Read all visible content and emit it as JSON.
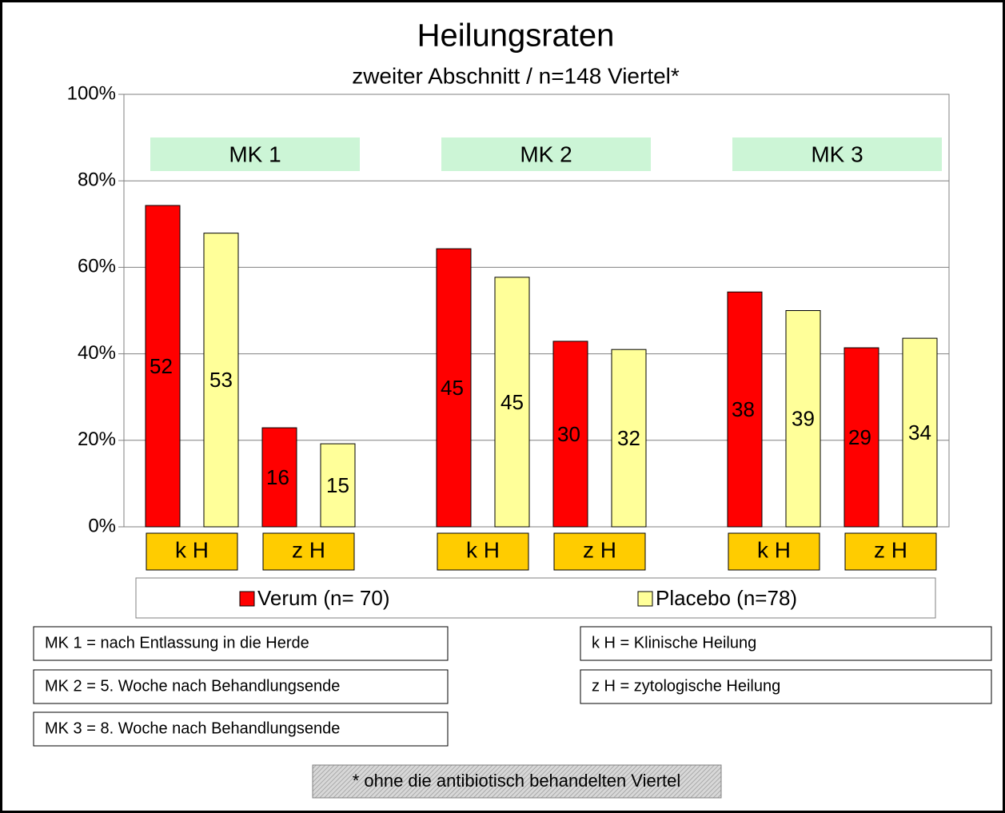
{
  "chart_data": {
    "type": "bar",
    "title": "Heilungsraten",
    "subtitle": "zweiter Abschnitt / n=148 Viertel*",
    "groups": [
      "MK 1",
      "MK 2",
      "MK 3"
    ],
    "categories": [
      "k H",
      "z H",
      "k H",
      "z H",
      "k H",
      "z H"
    ],
    "series": [
      {
        "name": "Verum (n= 70)",
        "color": "#ff0000",
        "values": [
          74.3,
          22.9,
          64.3,
          42.9,
          54.3,
          41.4
        ],
        "counts": [
          52,
          16,
          45,
          30,
          38,
          29
        ]
      },
      {
        "name": "Placebo (n=78)",
        "color": "#ffff99",
        "values": [
          67.9,
          19.2,
          57.7,
          41.0,
          50.0,
          43.6
        ],
        "counts": [
          53,
          15,
          45,
          32,
          39,
          34
        ]
      }
    ],
    "ylim": [
      0,
      100
    ],
    "yticks": [
      {
        "value": 0,
        "label": "0%"
      },
      {
        "value": 20,
        "label": "20%"
      },
      {
        "value": 40,
        "label": "40%"
      },
      {
        "value": 60,
        "label": "60%"
      },
      {
        "value": 80,
        "label": "80%"
      },
      {
        "value": 100,
        "label": "100%"
      }
    ],
    "grid": true,
    "notes_left": [
      "MK 1 = nach Entlassung in die Herde",
      "MK 2 = 5. Woche nach Behandlungsende",
      "MK 3 = 8. Woche nach Behandlungsende"
    ],
    "notes_right": [
      "k H = Klinische Heilung",
      "z H = zytologische Heilung"
    ],
    "footnote": "* ohne die antibiotisch behandelten Viertel"
  }
}
